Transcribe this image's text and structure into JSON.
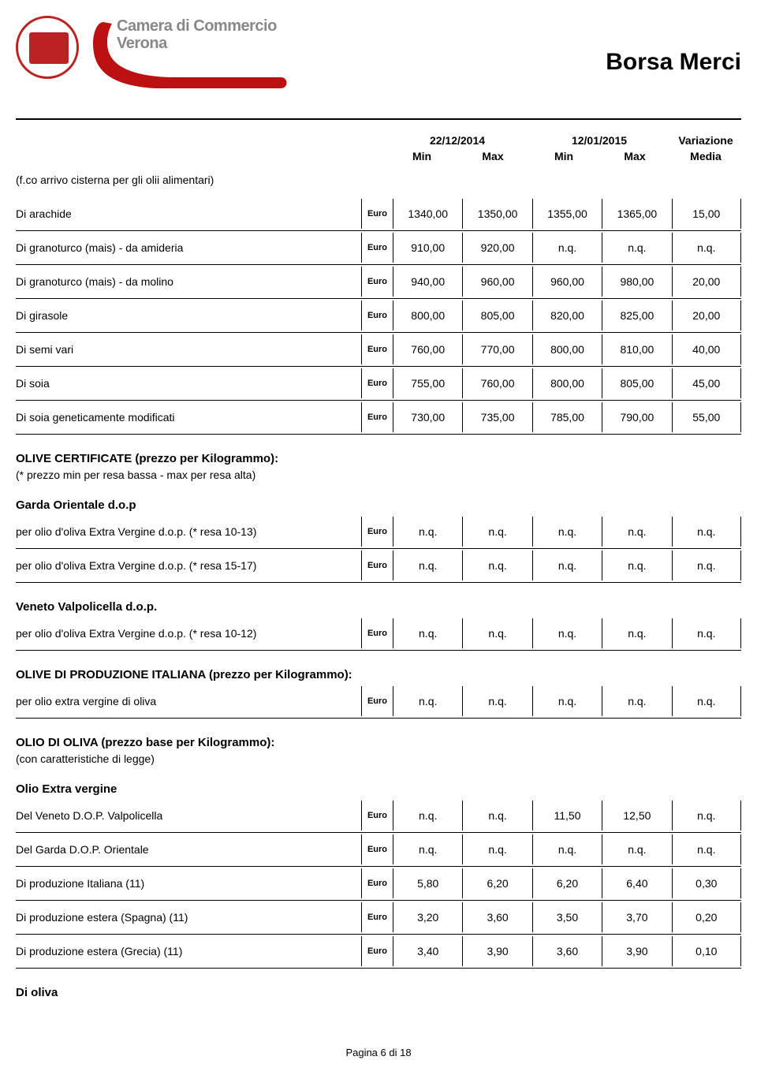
{
  "header": {
    "org_line1": "Camera di Commercio",
    "org_line2": "Verona",
    "page_title": "Borsa Merci"
  },
  "columns": {
    "date1": "22/12/2014",
    "date2": "12/01/2015",
    "variazione": "Variazione",
    "min": "Min",
    "max": "Max",
    "media": "Media"
  },
  "note_top": "(f.co arrivo cisterna per gli olii alimentari)",
  "unit_label": "Euro",
  "rows1": [
    {
      "label": "Di arachide",
      "v": [
        "1340,00",
        "1350,00",
        "1355,00",
        "1365,00",
        "15,00"
      ]
    },
    {
      "label": "Di granoturco (mais) - da amideria",
      "v": [
        "910,00",
        "920,00",
        "n.q.",
        "n.q.",
        "n.q."
      ]
    },
    {
      "label": "Di granoturco (mais) - da molino",
      "v": [
        "940,00",
        "960,00",
        "960,00",
        "980,00",
        "20,00"
      ]
    },
    {
      "label": "Di girasole",
      "v": [
        "800,00",
        "805,00",
        "820,00",
        "825,00",
        "20,00"
      ]
    },
    {
      "label": "Di semi vari",
      "v": [
        "760,00",
        "770,00",
        "800,00",
        "810,00",
        "40,00"
      ]
    },
    {
      "label": "Di soia",
      "v": [
        "755,00",
        "760,00",
        "800,00",
        "805,00",
        "45,00"
      ]
    },
    {
      "label": "Di soia geneticamente modificati",
      "v": [
        "730,00",
        "735,00",
        "785,00",
        "790,00",
        "55,00"
      ]
    }
  ],
  "sec_olive_cert": {
    "title": "OLIVE CERTIFICATE (prezzo per Kilogrammo):",
    "sub": "(* prezzo min per resa bassa - max per resa alta)"
  },
  "sec_garda": {
    "title": "Garda Orientale d.o.p",
    "rows": [
      {
        "label": "per olio d'oliva Extra Vergine d.o.p. (* resa 10-13)",
        "v": [
          "n.q.",
          "n.q.",
          "n.q.",
          "n.q.",
          "n.q."
        ]
      },
      {
        "label": "per olio d'oliva Extra Vergine d.o.p. (* resa 15-17)",
        "v": [
          "n.q.",
          "n.q.",
          "n.q.",
          "n.q.",
          "n.q."
        ]
      }
    ]
  },
  "sec_veneto": {
    "title": "Veneto Valpolicella d.o.p.",
    "rows": [
      {
        "label": "per olio d'oliva Extra Vergine d.o.p. (* resa 10-12)",
        "v": [
          "n.q.",
          "n.q.",
          "n.q.",
          "n.q.",
          "n.q."
        ]
      }
    ]
  },
  "sec_prod_it": {
    "title": "OLIVE DI PRODUZIONE ITALIANA (prezzo per Kilogrammo):",
    "rows": [
      {
        "label": "per olio extra vergine di oliva",
        "v": [
          "n.q.",
          "n.q.",
          "n.q.",
          "n.q.",
          "n.q."
        ]
      }
    ]
  },
  "sec_olio_oliva": {
    "title": "OLIO DI OLIVA (prezzo base per Kilogrammo):",
    "sub": "(con caratteristiche di legge)"
  },
  "sec_extra": {
    "title": "Olio Extra vergine",
    "rows": [
      {
        "label": "Del Veneto D.O.P. Valpolicella",
        "v": [
          "n.q.",
          "n.q.",
          "11,50",
          "12,50",
          "n.q."
        ]
      },
      {
        "label": "Del Garda D.O.P. Orientale",
        "v": [
          "n.q.",
          "n.q.",
          "n.q.",
          "n.q.",
          "n.q."
        ]
      },
      {
        "label": "Di produzione Italiana (11)",
        "v": [
          "5,80",
          "6,20",
          "6,20",
          "6,40",
          "0,30"
        ]
      },
      {
        "label": "Di produzione estera (Spagna) (11)",
        "v": [
          "3,20",
          "3,60",
          "3,50",
          "3,70",
          "0,20"
        ]
      },
      {
        "label": "Di produzione estera (Grecia) (11)",
        "v": [
          "3,40",
          "3,90",
          "3,60",
          "3,90",
          "0,10"
        ]
      }
    ]
  },
  "sec_di_oliva": "Di oliva",
  "footer": "Pagina 6 di 18"
}
